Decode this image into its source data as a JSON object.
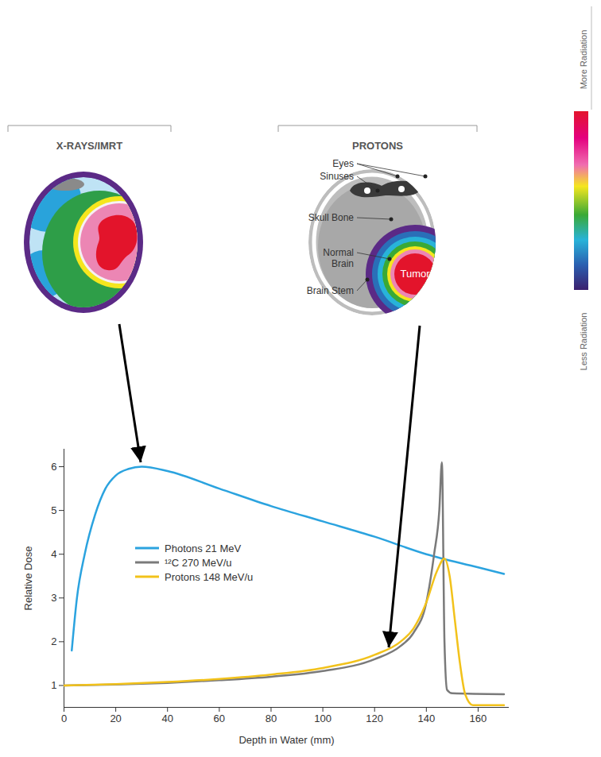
{
  "chart_data": {
    "type": "line",
    "x_label": "Depth in Water (mm)",
    "y_label": "Relative Dose",
    "xlim": [
      0,
      172
    ],
    "xticks": [
      0,
      20,
      40,
      60,
      80,
      100,
      120,
      140,
      160
    ],
    "ylim": [
      0.5,
      6.4
    ],
    "yticks": [
      1,
      2,
      3,
      4,
      5,
      6
    ],
    "legend": "left",
    "series": [
      {
        "name": "Photons 21 MeV",
        "color": "#2ba3df",
        "x": [
          3,
          5,
          8,
          12,
          16,
          20,
          25,
          30,
          40,
          60,
          80,
          100,
          120,
          140,
          160,
          170
        ],
        "values": [
          1.8,
          3.0,
          4.0,
          4.9,
          5.5,
          5.8,
          5.95,
          6.0,
          5.9,
          5.5,
          5.1,
          4.75,
          4.4,
          4.0,
          3.7,
          3.55
        ]
      },
      {
        "name": "¹²C 270 MeV/u",
        "color": "#7a7a7a",
        "x": [
          0,
          20,
          40,
          60,
          80,
          100,
          120,
          130,
          135,
          140,
          143,
          145,
          146,
          147,
          148,
          150,
          170
        ],
        "values": [
          1.0,
          1.02,
          1.06,
          1.12,
          1.2,
          1.33,
          1.6,
          1.9,
          2.2,
          2.9,
          4.0,
          5.0,
          6.1,
          2.0,
          0.9,
          0.82,
          0.8
        ]
      },
      {
        "name": "Protons 148 MeV/u",
        "color": "#f2c21b",
        "x": [
          0,
          20,
          40,
          60,
          80,
          100,
          120,
          130,
          135,
          140,
          144,
          147,
          149,
          151,
          153,
          155,
          158,
          170
        ],
        "values": [
          1.0,
          1.03,
          1.08,
          1.15,
          1.25,
          1.4,
          1.7,
          2.0,
          2.3,
          2.9,
          3.6,
          3.9,
          3.5,
          2.5,
          1.5,
          0.8,
          0.55,
          0.55
        ]
      }
    ]
  },
  "panels": [
    {
      "title": "X-RAYS/IMRT"
    },
    {
      "title": "PROTONS",
      "labels": [
        "Eyes",
        "Sinuses",
        "Skull Bone",
        "Normal Brain",
        "Brain Stem"
      ],
      "tumor_label": "Tumor"
    }
  ],
  "color_scale": {
    "top_label": "More Radiation",
    "bottom_label": "Less Radiation"
  }
}
